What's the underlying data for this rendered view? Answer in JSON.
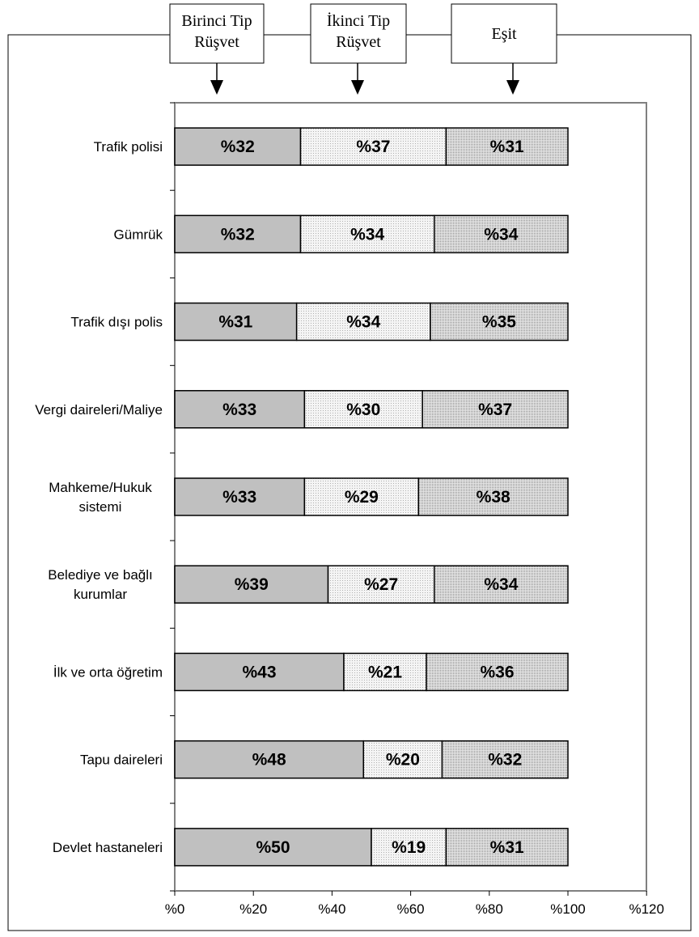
{
  "chart_data": {
    "type": "bar",
    "stacked": true,
    "orientation": "horizontal",
    "categories": [
      "Trafik polisi",
      "Gümrük",
      "Trafik dışı polis",
      "Vergi daireleri/Maliye",
      "Mahkeme/Hukuk sistemi",
      "Belediye ve bağlı kurumlar",
      "İlk ve orta öğretim",
      "Tapu daireleri",
      "Devlet hastaneleri"
    ],
    "category_lines": [
      [
        "Trafik polisi"
      ],
      [
        "Gümrük"
      ],
      [
        "Trafik dışı polis"
      ],
      [
        "Vergi daireleri/Maliye"
      ],
      [
        "Mahkeme/Hukuk",
        "sistemi"
      ],
      [
        "Belediye ve bağlı",
        "kurumlar"
      ],
      [
        "İlk ve orta öğretim"
      ],
      [
        "Tapu daireleri"
      ],
      [
        "Devlet hastaneleri"
      ]
    ],
    "series": [
      {
        "name": "Birinci Tip Rüşvet",
        "name_lines": [
          "Birinci Tip",
          "Rüşvet"
        ],
        "values": [
          32,
          32,
          31,
          33,
          33,
          39,
          43,
          48,
          50
        ],
        "color": "#c0c0c0"
      },
      {
        "name": "İkinci Tip Rüşvet",
        "name_lines": [
          "İkinci Tip",
          "Rüşvet"
        ],
        "values": [
          37,
          34,
          34,
          30,
          29,
          27,
          21,
          20,
          19
        ],
        "color": "#f2f2f2"
      },
      {
        "name": "Eşit",
        "name_lines": [
          "Eşit"
        ],
        "values": [
          31,
          34,
          35,
          37,
          38,
          34,
          36,
          32,
          31
        ],
        "color": "#d9d9d9"
      }
    ],
    "value_label_prefix": "%",
    "xlim": [
      0,
      120
    ],
    "xticks": [
      0,
      20,
      40,
      60,
      80,
      100,
      120
    ],
    "xtick_labels": [
      "%0",
      "%20",
      "%40",
      "%60",
      "%80",
      "%100",
      "%120"
    ],
    "legend_placement": "top",
    "grid": false
  }
}
